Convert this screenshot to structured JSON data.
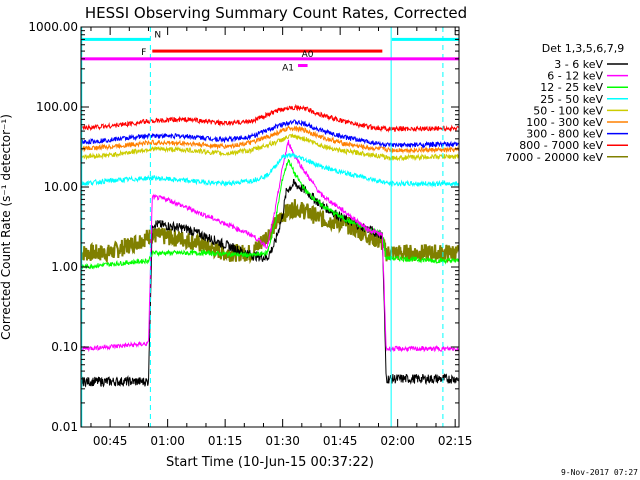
{
  "chart_data": {
    "type": "line",
    "title": "HESSI Observing Summary Count Rates, Corrected",
    "xlabel": "Start Time (10-Jun-15 00:37:22)",
    "ylabel": "Corrected Count Rate (s⁻¹ detector⁻¹)",
    "y_scale": "log",
    "ylim": [
      0.01,
      1000
    ],
    "xlim_minutes": [
      37.4,
      136
    ],
    "x_tick_labels": [
      "00:45",
      "01:00",
      "01:15",
      "01:30",
      "01:45",
      "02:00",
      "02:15"
    ],
    "x_tick_minutes": [
      45,
      60,
      75,
      90,
      105,
      120,
      135
    ],
    "y_tick_labels": [
      "0.01",
      "0.10",
      "1.00",
      "10.00",
      "100.00",
      "1000.00"
    ],
    "y_tick_values": [
      0.01,
      0.1,
      1,
      10,
      100,
      1000
    ],
    "timestamp": "9-Nov-2017 07:27",
    "legend_title": "Det 1,3,5,6,7,9",
    "legend_placement": "right",
    "series": [
      {
        "name": "3 - 6 keV",
        "color": "#000000",
        "points": [
          [
            37.4,
            0.037
          ],
          [
            55,
            0.037
          ],
          [
            56,
            3.5
          ],
          [
            65,
            3.0
          ],
          [
            75,
            1.9
          ],
          [
            82,
            1.4
          ],
          [
            86,
            1.3
          ],
          [
            88,
            2.0
          ],
          [
            90,
            4.5
          ],
          [
            91,
            9.0
          ],
          [
            93,
            11
          ],
          [
            96,
            9
          ],
          [
            100,
            6
          ],
          [
            106,
            4
          ],
          [
            112,
            3
          ],
          [
            116,
            2.5
          ],
          [
            117,
            0.04
          ],
          [
            130,
            0.04
          ]
        ]
      },
      {
        "name": "6 - 12 keV",
        "color": "#ff00ff",
        "points": [
          [
            37.4,
            0.095
          ],
          [
            55,
            0.11
          ],
          [
            56,
            7.5
          ],
          [
            60,
            7.0
          ],
          [
            65,
            5.5
          ],
          [
            75,
            3.5
          ],
          [
            82,
            2.5
          ],
          [
            86,
            1.8
          ],
          [
            88,
            5
          ],
          [
            90,
            18
          ],
          [
            91.5,
            37
          ],
          [
            93,
            25
          ],
          [
            96,
            15
          ],
          [
            100,
            8
          ],
          [
            106,
            5
          ],
          [
            112,
            3
          ],
          [
            116,
            2.5
          ],
          [
            117,
            0.095
          ],
          [
            130,
            0.095
          ]
        ]
      },
      {
        "name": "12 - 25 keV",
        "color": "#00ff00",
        "points": [
          [
            37.4,
            1.0
          ],
          [
            55,
            1.2
          ],
          [
            56,
            1.5
          ],
          [
            70,
            1.5
          ],
          [
            82,
            1.4
          ],
          [
            86,
            1.5
          ],
          [
            88,
            3.5
          ],
          [
            90,
            13
          ],
          [
            91.5,
            22
          ],
          [
            93,
            15
          ],
          [
            96,
            9
          ],
          [
            100,
            6
          ],
          [
            106,
            4
          ],
          [
            112,
            3
          ],
          [
            116,
            2.6
          ],
          [
            117,
            1.3
          ],
          [
            130,
            1.2
          ]
        ]
      },
      {
        "name": "25 - 50 keV",
        "color": "#00ffff",
        "points": [
          [
            37.4,
            11
          ],
          [
            45,
            12
          ],
          [
            56,
            13
          ],
          [
            65,
            12
          ],
          [
            75,
            11
          ],
          [
            82,
            12
          ],
          [
            86,
            14
          ],
          [
            88,
            18
          ],
          [
            90,
            24
          ],
          [
            92,
            25
          ],
          [
            95,
            23
          ],
          [
            100,
            18
          ],
          [
            106,
            15
          ],
          [
            112,
            13
          ],
          [
            118,
            11
          ],
          [
            130,
            11
          ]
        ]
      },
      {
        "name": "50 - 100 keV",
        "color": "#cccc00",
        "points": [
          [
            37.4,
            24
          ],
          [
            45,
            25
          ],
          [
            56,
            30
          ],
          [
            65,
            29
          ],
          [
            75,
            26
          ],
          [
            82,
            29
          ],
          [
            88,
            36
          ],
          [
            92,
            43
          ],
          [
            96,
            40
          ],
          [
            100,
            33
          ],
          [
            106,
            28
          ],
          [
            112,
            26
          ],
          [
            118,
            23
          ],
          [
            130,
            24
          ]
        ]
      },
      {
        "name": "100 - 300 keV",
        "color": "#ff8000",
        "points": [
          [
            37.4,
            30
          ],
          [
            45,
            32
          ],
          [
            56,
            36
          ],
          [
            65,
            35
          ],
          [
            75,
            32
          ],
          [
            82,
            36
          ],
          [
            88,
            46
          ],
          [
            92,
            55
          ],
          [
            96,
            51
          ],
          [
            100,
            42
          ],
          [
            106,
            35
          ],
          [
            112,
            31
          ],
          [
            118,
            29
          ],
          [
            130,
            29
          ]
        ]
      },
      {
        "name": "300 - 800 keV",
        "color": "#0000ff",
        "points": [
          [
            37.4,
            36
          ],
          [
            45,
            39
          ],
          [
            56,
            44
          ],
          [
            65,
            43
          ],
          [
            75,
            39
          ],
          [
            82,
            43
          ],
          [
            88,
            56
          ],
          [
            92,
            66
          ],
          [
            96,
            61
          ],
          [
            100,
            51
          ],
          [
            106,
            42
          ],
          [
            112,
            37
          ],
          [
            118,
            33
          ],
          [
            130,
            34
          ]
        ]
      },
      {
        "name": "800 - 7000 keV",
        "color": "#ff0000",
        "points": [
          [
            37.4,
            55
          ],
          [
            45,
            58
          ],
          [
            56,
            67
          ],
          [
            65,
            70
          ],
          [
            75,
            62
          ],
          [
            82,
            67
          ],
          [
            88,
            87
          ],
          [
            92,
            100
          ],
          [
            96,
            95
          ],
          [
            100,
            80
          ],
          [
            106,
            66
          ],
          [
            112,
            57
          ],
          [
            118,
            53
          ],
          [
            130,
            54
          ]
        ]
      },
      {
        "name": "7000 - 20000 keV",
        "color": "#808000",
        "points": [
          [
            37.4,
            1.5
          ],
          [
            45,
            1.5
          ],
          [
            56,
            2.5
          ],
          [
            65,
            2.2
          ],
          [
            75,
            1.5
          ],
          [
            82,
            1.5
          ],
          [
            86,
            2.5
          ],
          [
            90,
            4.5
          ],
          [
            93,
            5.5
          ],
          [
            96,
            5.0
          ],
          [
            100,
            4.0
          ],
          [
            106,
            3.5
          ],
          [
            112,
            2.5
          ],
          [
            116,
            2.0
          ],
          [
            117,
            1.5
          ],
          [
            130,
            1.5
          ]
        ]
      }
    ],
    "flag_bars": [
      {
        "label": "N",
        "color": "#00ffff",
        "level": 700,
        "segments": [
          [
            37.4,
            55.5
          ],
          [
            118.5,
            136
          ]
        ]
      },
      {
        "label": "F",
        "color": "#ff0000",
        "level": 500,
        "segments": [
          [
            56,
            116
          ]
        ]
      },
      {
        "label": "A0",
        "color": "#ff00ff",
        "level": 400,
        "segments": [
          [
            37.4,
            136
          ]
        ]
      },
      {
        "label": "A1",
        "color": "#ff00ff",
        "level": 330,
        "segments": [
          [
            94,
            96.5
          ]
        ]
      }
    ],
    "vertical_lines": [
      {
        "x": 37.6,
        "color": "#00ffff",
        "style": "solid"
      },
      {
        "x": 55.5,
        "color": "#00ffff",
        "style": "dashed"
      },
      {
        "x": 118.3,
        "color": "#00ffff",
        "style": "solid"
      },
      {
        "x": 131.8,
        "color": "#00ffff",
        "style": "dashed"
      }
    ]
  }
}
